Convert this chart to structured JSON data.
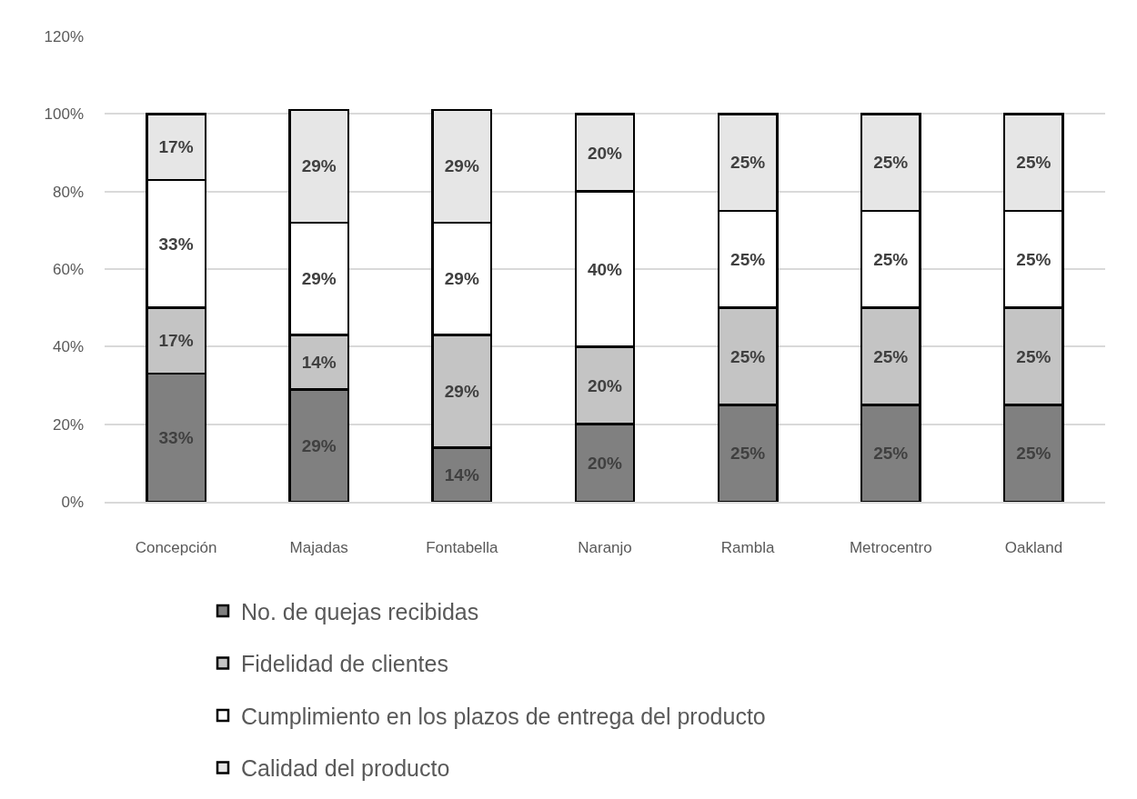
{
  "chart_data": {
    "type": "bar",
    "stacked": true,
    "categories": [
      "Concepción",
      "Majadas",
      "Fontabella",
      "Naranjo",
      "Rambla",
      "Metrocentro",
      "Oakland"
    ],
    "series": [
      {
        "name": "No. de quejas recibidas",
        "color": "#808080",
        "values": [
          33,
          29,
          14,
          20,
          25,
          25,
          25
        ],
        "value_labels": [
          "33%",
          "29%",
          "14%",
          "20%",
          "25%",
          "25%",
          "25%"
        ]
      },
      {
        "name": "Fidelidad de clientes",
        "color": "#c4c4c4",
        "values": [
          17,
          14,
          29,
          20,
          25,
          25,
          25
        ],
        "value_labels": [
          "17%",
          "14%",
          "29%",
          "20%",
          "25%",
          "25%",
          "25%"
        ]
      },
      {
        "name": "Cumplimiento en los plazos de entrega del producto",
        "color": "#ffffff",
        "values": [
          33,
          29,
          29,
          40,
          25,
          25,
          25
        ],
        "value_labels": [
          "33%",
          "29%",
          "29%",
          "40%",
          "25%",
          "25%",
          "25%"
        ]
      },
      {
        "name": "Calidad del producto",
        "color": "#e6e6e6",
        "values": [
          17,
          29,
          29,
          20,
          25,
          25,
          25
        ],
        "value_labels": [
          "17%",
          "29%",
          "29%",
          "20%",
          "25%",
          "25%",
          "25%"
        ]
      }
    ],
    "ylim": [
      0,
      120
    ],
    "yticks": [
      {
        "value": 0,
        "label": "0%"
      },
      {
        "value": 20,
        "label": "20%"
      },
      {
        "value": 40,
        "label": "40%"
      },
      {
        "value": 60,
        "label": "60%"
      },
      {
        "value": 80,
        "label": "80%"
      },
      {
        "value": 100,
        "label": "100%"
      },
      {
        "value": 120,
        "label": "120%"
      }
    ],
    "grid": "y",
    "legend": "bottom"
  }
}
